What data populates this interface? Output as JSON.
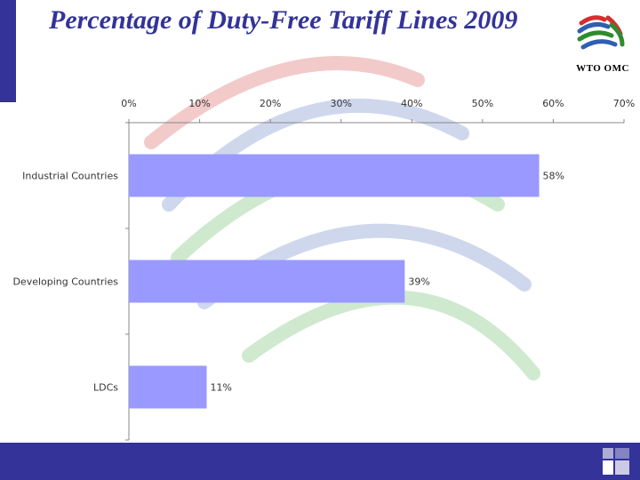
{
  "slide": {
    "title": "Percentage of Duty-Free Tariff Lines 2009"
  },
  "logo": {
    "text": "WTO OMC",
    "icon": "wto-logo"
  },
  "colors": {
    "brand": "#333399",
    "bar": "#9999FF",
    "watermark_red": "#E8A0A0",
    "watermark_blue": "#A8B8E0",
    "watermark_green": "#A8D8A8"
  },
  "chart_data": {
    "type": "bar",
    "orientation": "horizontal",
    "categories": [
      "Industrial Countries",
      "Developing Countries",
      "LDCs"
    ],
    "values": [
      58,
      39,
      11
    ],
    "data_labels": [
      "58%",
      "39%",
      "11%"
    ],
    "xlim": [
      0,
      70
    ],
    "x_ticks": [
      0,
      10,
      20,
      30,
      40,
      50,
      60,
      70
    ],
    "x_tick_labels": [
      "0%",
      "10%",
      "20%",
      "30%",
      "40%",
      "50%",
      "60%",
      "70%"
    ],
    "x_axis_position": "top",
    "grid": false,
    "legend": "none"
  },
  "footer": {
    "icon": "slide-logo-icon"
  }
}
